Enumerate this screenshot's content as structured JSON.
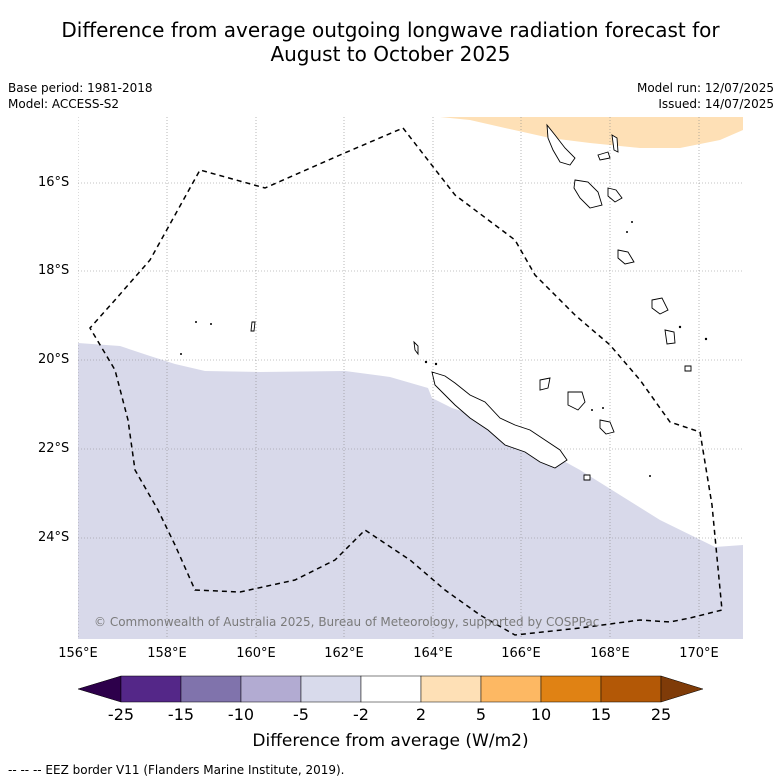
{
  "title_line1": "Difference from average outgoing longwave radiation forecast for",
  "title_line2": "August to October 2025",
  "base_period": "Base period: 1981-2018",
  "model": "Model: ACCESS-S2",
  "model_run": "Model run: 12/07/2025",
  "issued": "Issued: 14/07/2025",
  "copyright": "© Commonwealth of Australia 2025, Bureau of Meteorology, supported by COSPPac",
  "map": {
    "lat_labels": [
      "16°S",
      "18°S",
      "20°S",
      "22°S",
      "24°S"
    ],
    "lon_labels": [
      "156°E",
      "158°E",
      "160°E",
      "162°E",
      "164°E",
      "166°E",
      "168°E",
      "170°E"
    ],
    "shading": [
      {
        "category": "-5 to -2",
        "color": "#d7d7e9"
      },
      {
        "category": "2 to 5",
        "color": "#fee0b6"
      }
    ]
  },
  "colorbar": {
    "title": "Difference from average (W/m2)",
    "ticks": [
      "-25",
      "-15",
      "-10",
      "-5",
      "-2",
      "2",
      "5",
      "10",
      "15",
      "25"
    ],
    "colors": [
      "#2d004b",
      "#542788",
      "#8073ac",
      "#b2abd2",
      "#d8daeb",
      "#ffffff",
      "#fee0b6",
      "#fdb863",
      "#e08214",
      "#b35806",
      "#7f3b08"
    ]
  },
  "legend_eez": "--  --  -- EEZ border V11 (Flanders Marine Institute, 2019)."
}
